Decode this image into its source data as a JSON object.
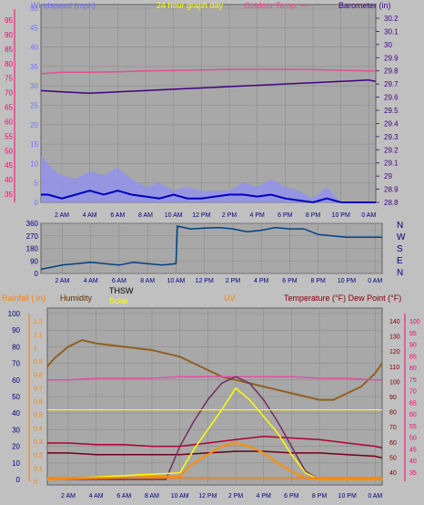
{
  "header": {
    "windspeed_label": "Windspeed (mph)",
    "title": "24 hour graph day",
    "outdoor_temp_label": "Outdoor Temp. ---",
    "barometer_label": "Barometer (in)"
  },
  "time_labels": [
    "2 AM",
    "4 AM",
    "6 AM",
    "8 AM",
    "10 AM",
    "12 PM",
    "2 PM",
    "4 PM",
    "6 PM",
    "8 PM",
    "10 PM",
    "0 AM"
  ],
  "compass_labels": [
    "N",
    "W",
    "S",
    "E",
    "N"
  ],
  "bottom_header": {
    "rainfall_label": "Rainfall (.in)",
    "humidity_label": "Humidity",
    "thsw_label": "THSW",
    "solar_label": "Solar",
    "uv_label": "UV",
    "temperature_label": "Temperature (°F) Dew Point (°F)"
  },
  "colors": {
    "plot_bg": "#a8a8a8",
    "grid": "#8c8c8c",
    "windspeed": "#9090f0",
    "wind_avg": "#0000c0",
    "wind_gust_fill": "#004000",
    "barometer": "#400080",
    "outdoor_temp": "#e05090",
    "direction": "#004080",
    "humidity": "#906020",
    "thsw": "#b00030",
    "temperature": "#700018",
    "dewpoint": "#e050a0",
    "solar": "#ffff00",
    "uv": "#ff9000",
    "uv_index": "#703060",
    "rain": "#ff8000"
  },
  "chart_data": [
    {
      "type": "line",
      "name": "wind-barometer-chart",
      "x_unit": "hours",
      "x_range": [
        0.5,
        24.5
      ],
      "x_ticks": [
        "2 AM",
        "4 AM",
        "6 AM",
        "8 AM",
        "10 AM",
        "12 PM",
        "2 PM",
        "4 PM",
        "6 PM",
        "8 PM",
        "10 PM",
        "0 AM"
      ],
      "left_axis": {
        "ticks": [
          0,
          5,
          10,
          15,
          20,
          25,
          30,
          35,
          40,
          45,
          50
        ]
      },
      "left_outer_axis": {
        "ticks": [
          35,
          40,
          45,
          50,
          55,
          60,
          65,
          70,
          75,
          80,
          85,
          90,
          95
        ]
      },
      "right_axis": {
        "ticks": [
          28.8,
          28.9,
          29,
          29.1,
          29.2,
          29.3,
          29.4,
          29.5,
          29.6,
          29.7,
          29.8,
          29.9,
          30,
          30.1,
          30.2
        ]
      },
      "series": [
        {
          "name": "Windspeed (mph)",
          "x": [
            0.5,
            1,
            1.5,
            2,
            3,
            4,
            5,
            6,
            7,
            8,
            9,
            10,
            11,
            12,
            13,
            14,
            15,
            16,
            17,
            18,
            19,
            20,
            21,
            22,
            23,
            24,
            24.5
          ],
          "y": [
            12,
            10,
            8,
            7,
            6,
            8,
            7,
            9,
            6,
            4,
            5,
            3,
            4,
            3,
            3,
            3,
            5,
            4,
            6,
            4,
            3,
            1,
            4,
            0,
            0,
            0,
            0
          ]
        },
        {
          "name": "wind-average",
          "x": [
            0.5,
            1,
            1.5,
            2,
            3,
            4,
            5,
            6,
            7,
            8,
            9,
            10,
            11,
            12,
            13,
            14,
            15,
            16,
            17,
            18,
            19,
            20,
            21,
            22,
            23,
            24,
            24.5
          ],
          "y": [
            2,
            2,
            1.5,
            1,
            2,
            3,
            2,
            3,
            2,
            1.5,
            1,
            2,
            1,
            1,
            1.5,
            2,
            2,
            1.5,
            2,
            1,
            0.5,
            0,
            1,
            0,
            0,
            0,
            0
          ]
        },
        {
          "name": "Barometer (in)",
          "x": [
            0.5,
            2,
            4,
            6,
            8,
            10,
            12,
            14,
            16,
            18,
            20,
            22,
            24,
            24.5
          ],
          "y": [
            29.65,
            29.64,
            29.63,
            29.64,
            29.65,
            29.66,
            29.67,
            29.68,
            29.69,
            29.7,
            29.71,
            29.72,
            29.73,
            29.72
          ]
        },
        {
          "name": "Outdoor Temp.",
          "x": [
            0.5,
            2,
            4,
            6,
            8,
            10,
            12,
            14,
            16,
            18,
            20,
            22,
            24,
            24.5
          ],
          "y": [
            76.5,
            77,
            77,
            77.2,
            77.5,
            77.6,
            77.8,
            78,
            78,
            78,
            77.9,
            77.7,
            77.5,
            77.4
          ]
        }
      ]
    },
    {
      "type": "line",
      "name": "wind-direction-chart",
      "x_range": [
        0.5,
        24.5
      ],
      "y_ticks": [
        0,
        90,
        180,
        270,
        360
      ],
      "series": [
        {
          "name": "direction",
          "x": [
            0.5,
            1,
            2,
            3,
            4,
            5,
            6,
            7,
            8,
            9,
            10,
            10.1,
            11,
            12,
            13,
            14,
            15,
            16,
            17,
            18,
            19,
            20,
            21,
            22,
            23,
            24,
            24.5
          ],
          "y": [
            30,
            40,
            60,
            70,
            80,
            70,
            60,
            80,
            70,
            60,
            70,
            340,
            320,
            325,
            330,
            320,
            300,
            310,
            330,
            320,
            320,
            280,
            270,
            260,
            260,
            260,
            260
          ]
        }
      ]
    },
    {
      "type": "line",
      "name": "weather-chart",
      "x_range": [
        0.5,
        24.5
      ],
      "left_axis_ticks": [
        0,
        10,
        20,
        30,
        40,
        50,
        60,
        70,
        80,
        90,
        100
      ],
      "rain_axis_ticks": [
        0,
        0.1,
        0.2,
        0.3,
        0.4,
        0.5,
        0.6,
        0.7,
        0.8,
        0.9,
        1,
        1.1,
        1.2
      ],
      "temp_axis_ticks": [
        40,
        50,
        60,
        70,
        80,
        90,
        100,
        110,
        120,
        130,
        140
      ],
      "dew_axis_ticks": [
        35,
        40,
        45,
        50,
        55,
        60,
        65,
        70,
        75,
        80,
        85,
        90,
        95,
        100
      ],
      "series": [
        {
          "name": "Humidity",
          "x": [
            0.5,
            1,
            2,
            3,
            4,
            5,
            6,
            7,
            8,
            9,
            10,
            11,
            12,
            13,
            14,
            15,
            16,
            17,
            18,
            19,
            20,
            21,
            22,
            23,
            24,
            24.5
          ],
          "y": [
            68,
            73,
            80,
            84,
            82,
            81,
            80,
            79,
            78,
            76,
            74,
            70,
            66,
            62,
            60,
            58,
            56,
            54,
            52,
            50,
            48,
            48,
            52,
            56,
            64,
            70
          ]
        },
        {
          "name": "THSW",
          "x": [
            0.5,
            2,
            4,
            6,
            8,
            10,
            12,
            14,
            16,
            18,
            20,
            22,
            24,
            24.5
          ],
          "y": [
            22,
            22,
            21,
            21,
            20,
            20,
            22,
            24,
            26,
            25,
            24,
            22,
            20,
            19
          ]
        },
        {
          "name": "Temperature",
          "x": [
            0.5,
            2,
            4,
            6,
            8,
            10,
            12,
            14,
            16,
            18,
            20,
            22,
            24,
            24.5
          ],
          "y": [
            16,
            16,
            15,
            15,
            15,
            15,
            16,
            17,
            17,
            16,
            16,
            15,
            14,
            13
          ]
        },
        {
          "name": "Dew Point",
          "x": [
            0.5,
            2,
            4,
            6,
            8,
            10,
            12,
            14,
            16,
            18,
            20,
            22,
            24,
            24.5
          ],
          "y": [
            60,
            60,
            61,
            61,
            61,
            62,
            62,
            62,
            62,
            62,
            61,
            61,
            60,
            60
          ]
        },
        {
          "name": "UV-index",
          "x": [
            0.5,
            9,
            10,
            11,
            12,
            13,
            14,
            15,
            16,
            17,
            18,
            19,
            20,
            24.5
          ],
          "y": [
            0,
            0,
            20,
            35,
            48,
            58,
            62,
            58,
            48,
            35,
            20,
            5,
            0,
            0
          ]
        },
        {
          "name": "Solar",
          "x": [
            0.5,
            10,
            11,
            12,
            13,
            14,
            15,
            16,
            17,
            18,
            19,
            20,
            24.5
          ],
          "y": [
            0,
            4,
            18,
            30,
            42,
            55,
            48,
            38,
            28,
            15,
            4,
            0,
            0
          ]
        },
        {
          "name": "UV",
          "x": [
            0.5,
            10,
            11,
            12,
            13,
            14,
            15,
            16,
            17,
            18,
            19,
            20,
            24.5
          ],
          "y": [
            0,
            2,
            10,
            15,
            20,
            22,
            20,
            16,
            10,
            5,
            1,
            0,
            0
          ]
        }
      ]
    }
  ]
}
